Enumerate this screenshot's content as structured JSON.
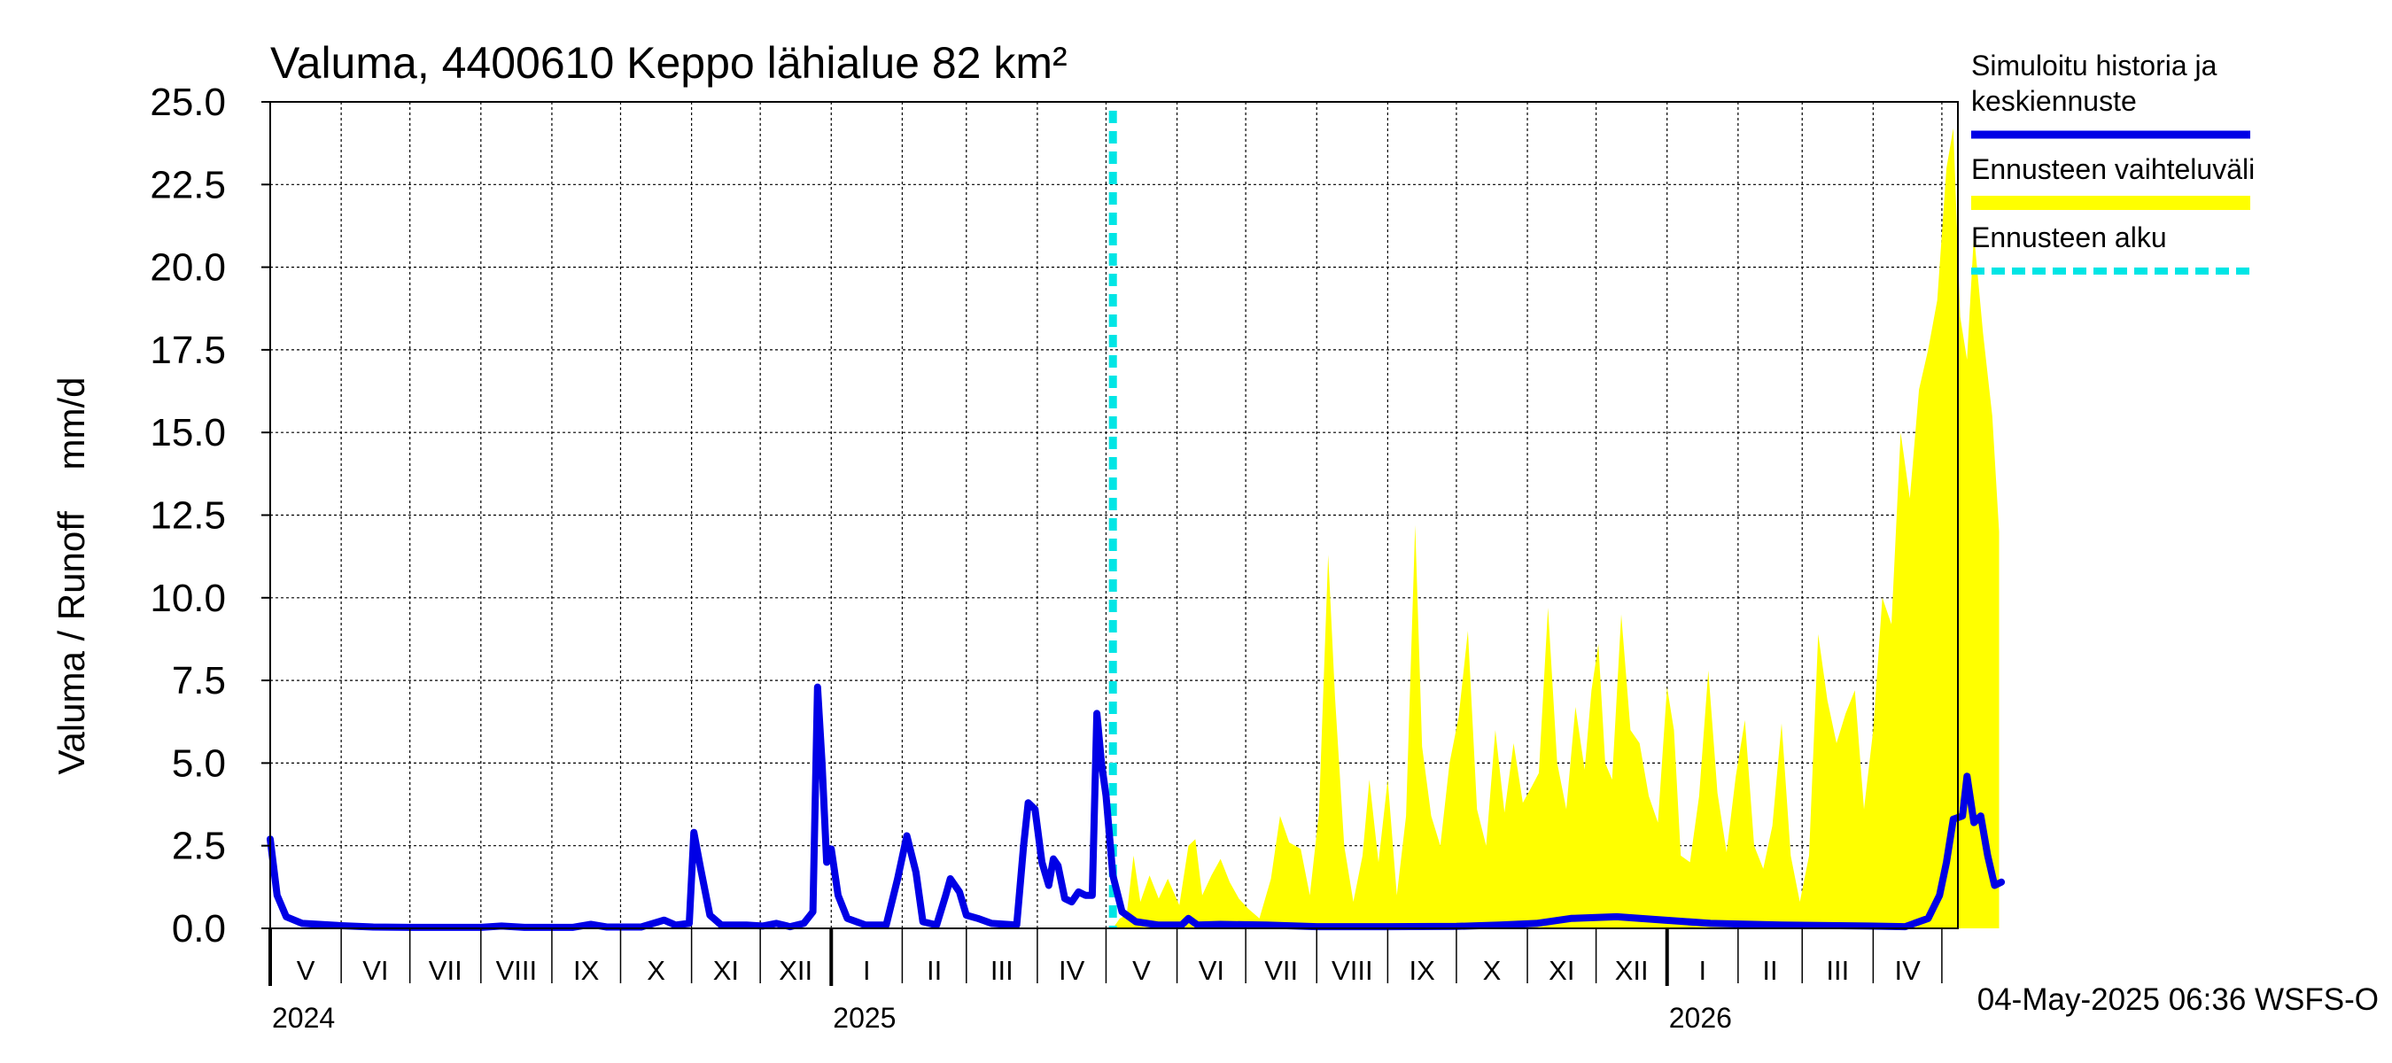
{
  "chart_data": {
    "type": "area",
    "title": "Valuma, 4400610 Keppo lähialue 82 km²",
    "ylabel": "Valuma / Runoff    mm/d",
    "ylim": [
      0,
      25
    ],
    "yticks": [
      "0.0",
      "2.5",
      "5.0",
      "7.5",
      "10.0",
      "12.5",
      "15.0",
      "17.5",
      "20.0",
      "22.5",
      "25.0"
    ],
    "x_range": [
      "2024-05-01",
      "2026-05-08"
    ],
    "month_labels": [
      "V",
      "VI",
      "VII",
      "VIII",
      "IX",
      "X",
      "XI",
      "XII",
      "I",
      "II",
      "III",
      "IV",
      "V",
      "VI",
      "VII",
      "VIII",
      "IX",
      "X",
      "XI",
      "XII",
      "I",
      "II",
      "III",
      "IV"
    ],
    "year_labels": [
      "2024",
      "2025",
      "2026"
    ],
    "grid": true,
    "legend_position": "right",
    "forecast_start": "2025-05-04",
    "footer": "04-May-2025 06:36 WSFS-O",
    "series": [
      {
        "name": "Simuloitu historia ja keskiennuste",
        "color": "#0000e6",
        "points": [
          [
            "2024-05-01",
            2.7
          ],
          [
            "2024-05-04",
            1.0
          ],
          [
            "2024-05-08",
            0.35
          ],
          [
            "2024-05-15",
            0.15
          ],
          [
            "2024-06-01",
            0.08
          ],
          [
            "2024-06-15",
            0.04
          ],
          [
            "2024-07-01",
            0.03
          ],
          [
            "2024-08-01",
            0.03
          ],
          [
            "2024-08-10",
            0.07
          ],
          [
            "2024-08-20",
            0.03
          ],
          [
            "2024-09-10",
            0.03
          ],
          [
            "2024-09-18",
            0.12
          ],
          [
            "2024-09-25",
            0.04
          ],
          [
            "2024-10-10",
            0.04
          ],
          [
            "2024-10-20",
            0.25
          ],
          [
            "2024-10-25",
            0.1
          ],
          [
            "2024-10-31",
            0.15
          ],
          [
            "2024-11-02",
            2.9
          ],
          [
            "2024-11-05",
            1.8
          ],
          [
            "2024-11-09",
            0.4
          ],
          [
            "2024-11-14",
            0.1
          ],
          [
            "2024-11-25",
            0.1
          ],
          [
            "2024-12-02",
            0.07
          ],
          [
            "2024-12-08",
            0.15
          ],
          [
            "2024-12-14",
            0.05
          ],
          [
            "2024-12-20",
            0.15
          ],
          [
            "2024-12-24",
            0.5
          ],
          [
            "2024-12-26",
            7.3
          ],
          [
            "2024-12-28",
            5.0
          ],
          [
            "2024-12-30",
            2.0
          ],
          [
            "2025-01-01",
            2.4
          ],
          [
            "2025-01-04",
            1.0
          ],
          [
            "2025-01-08",
            0.3
          ],
          [
            "2025-01-16",
            0.1
          ],
          [
            "2025-01-25",
            0.1
          ],
          [
            "2025-01-30",
            1.5
          ],
          [
            "2025-02-03",
            2.8
          ],
          [
            "2025-02-07",
            1.7
          ],
          [
            "2025-02-10",
            0.2
          ],
          [
            "2025-02-16",
            0.1
          ],
          [
            "2025-02-20",
            1.0
          ],
          [
            "2025-02-22",
            1.5
          ],
          [
            "2025-02-26",
            1.1
          ],
          [
            "2025-03-01",
            0.4
          ],
          [
            "2025-03-06",
            0.3
          ],
          [
            "2025-03-12",
            0.15
          ],
          [
            "2025-03-23",
            0.1
          ],
          [
            "2025-03-26",
            2.5
          ],
          [
            "2025-03-28",
            3.8
          ],
          [
            "2025-03-31",
            3.6
          ],
          [
            "2025-04-03",
            2.0
          ],
          [
            "2025-04-06",
            1.3
          ],
          [
            "2025-04-08",
            2.1
          ],
          [
            "2025-04-10",
            1.9
          ],
          [
            "2025-04-13",
            0.9
          ],
          [
            "2025-04-16",
            0.8
          ],
          [
            "2025-04-19",
            1.1
          ],
          [
            "2025-04-22",
            1.0
          ],
          [
            "2025-04-25",
            1.0
          ],
          [
            "2025-04-27",
            6.5
          ],
          [
            "2025-04-29",
            5.0
          ],
          [
            "2025-05-01",
            4.0
          ],
          [
            "2025-05-04",
            1.6
          ],
          [
            "2025-05-08",
            0.5
          ],
          [
            "2025-05-14",
            0.2
          ],
          [
            "2025-05-24",
            0.1
          ],
          [
            "2025-06-03",
            0.1
          ],
          [
            "2025-06-06",
            0.3
          ],
          [
            "2025-06-10",
            0.1
          ],
          [
            "2025-06-20",
            0.12
          ],
          [
            "2025-07-10",
            0.1
          ],
          [
            "2025-08-01",
            0.05
          ],
          [
            "2025-09-01",
            0.05
          ],
          [
            "2025-10-01",
            0.06
          ],
          [
            "2025-10-20",
            0.1
          ],
          [
            "2025-11-05",
            0.15
          ],
          [
            "2025-11-20",
            0.3
          ],
          [
            "2025-12-10",
            0.35
          ],
          [
            "2025-12-31",
            0.25
          ],
          [
            "2026-01-20",
            0.15
          ],
          [
            "2026-02-20",
            0.1
          ],
          [
            "2026-03-30",
            0.07
          ],
          [
            "2026-04-15",
            0.05
          ],
          [
            "2026-04-25",
            0.3
          ],
          [
            "2026-04-30",
            1.0
          ],
          [
            "2026-05-03",
            2.0
          ],
          [
            "2026-05-06",
            3.3
          ],
          [
            "2026-05-10",
            3.4
          ],
          [
            "2026-05-12",
            4.6
          ],
          [
            "2026-05-15",
            3.2
          ],
          [
            "2026-05-18",
            3.4
          ],
          [
            "2026-05-21",
            2.2
          ],
          [
            "2026-05-24",
            1.3
          ],
          [
            "2026-05-27",
            1.4
          ]
        ]
      },
      {
        "name": "Ennusteen vaihteluväli",
        "color": "#ffff00",
        "points": [
          [
            "2025-05-04",
            0.0
          ],
          [
            "2025-05-07",
            0.3
          ],
          [
            "2025-05-10",
            0.4
          ],
          [
            "2025-05-13",
            2.2
          ],
          [
            "2025-05-16",
            0.8
          ],
          [
            "2025-05-20",
            1.6
          ],
          [
            "2025-05-24",
            0.9
          ],
          [
            "2025-05-28",
            1.5
          ],
          [
            "2025-06-02",
            0.7
          ],
          [
            "2025-06-06",
            2.5
          ],
          [
            "2025-06-09",
            2.7
          ],
          [
            "2025-06-12",
            1.0
          ],
          [
            "2025-06-16",
            1.6
          ],
          [
            "2025-06-20",
            2.1
          ],
          [
            "2025-06-24",
            1.4
          ],
          [
            "2025-06-28",
            0.9
          ],
          [
            "2025-07-02",
            0.6
          ],
          [
            "2025-07-07",
            0.3
          ],
          [
            "2025-07-12",
            1.5
          ],
          [
            "2025-07-16",
            3.4
          ],
          [
            "2025-07-20",
            2.6
          ],
          [
            "2025-07-25",
            2.4
          ],
          [
            "2025-07-29",
            1.0
          ],
          [
            "2025-08-02",
            3.5
          ],
          [
            "2025-08-06",
            11.3
          ],
          [
            "2025-08-09",
            7.0
          ],
          [
            "2025-08-13",
            2.5
          ],
          [
            "2025-08-17",
            0.8
          ],
          [
            "2025-08-21",
            2.2
          ],
          [
            "2025-08-24",
            4.5
          ],
          [
            "2025-08-28",
            2.0
          ],
          [
            "2025-09-01",
            4.5
          ],
          [
            "2025-09-05",
            1.0
          ],
          [
            "2025-09-09",
            3.4
          ],
          [
            "2025-09-13",
            12.2
          ],
          [
            "2025-09-16",
            5.5
          ],
          [
            "2025-09-20",
            3.4
          ],
          [
            "2025-09-24",
            2.5
          ],
          [
            "2025-09-28",
            5.0
          ],
          [
            "2025-10-02",
            6.4
          ],
          [
            "2025-10-06",
            9.0
          ],
          [
            "2025-10-10",
            3.6
          ],
          [
            "2025-10-14",
            2.5
          ],
          [
            "2025-10-18",
            6.0
          ],
          [
            "2025-10-22",
            3.5
          ],
          [
            "2025-10-26",
            5.6
          ],
          [
            "2025-10-30",
            3.8
          ],
          [
            "2025-11-03",
            4.3
          ],
          [
            "2025-11-06",
            4.7
          ],
          [
            "2025-11-10",
            9.7
          ],
          [
            "2025-11-14",
            5.0
          ],
          [
            "2025-11-18",
            3.6
          ],
          [
            "2025-11-22",
            6.7
          ],
          [
            "2025-11-26",
            4.8
          ],
          [
            "2025-11-29",
            7.2
          ],
          [
            "2025-12-02",
            8.6
          ],
          [
            "2025-12-05",
            5.0
          ],
          [
            "2025-12-08",
            4.5
          ],
          [
            "2025-12-12",
            9.5
          ],
          [
            "2025-12-16",
            6.0
          ],
          [
            "2025-12-20",
            5.6
          ],
          [
            "2025-12-24",
            4.0
          ],
          [
            "2025-12-28",
            3.2
          ],
          [
            "2026-01-01",
            7.3
          ],
          [
            "2026-01-04",
            6.0
          ],
          [
            "2026-01-07",
            2.2
          ],
          [
            "2026-01-11",
            2.0
          ],
          [
            "2026-01-15",
            4.0
          ],
          [
            "2026-01-19",
            7.8
          ],
          [
            "2026-01-23",
            4.1
          ],
          [
            "2026-01-27",
            2.3
          ],
          [
            "2026-01-31",
            4.6
          ],
          [
            "2026-02-04",
            6.3
          ],
          [
            "2026-02-08",
            2.5
          ],
          [
            "2026-02-12",
            1.8
          ],
          [
            "2026-02-16",
            3.1
          ],
          [
            "2026-02-20",
            6.2
          ],
          [
            "2026-02-24",
            2.2
          ],
          [
            "2026-02-28",
            0.8
          ],
          [
            "2026-03-04",
            2.2
          ],
          [
            "2026-03-08",
            8.9
          ],
          [
            "2026-03-12",
            6.9
          ],
          [
            "2026-03-16",
            5.6
          ],
          [
            "2026-03-20",
            6.5
          ],
          [
            "2026-03-24",
            7.2
          ],
          [
            "2026-03-28",
            3.6
          ],
          [
            "2026-04-01",
            6.0
          ],
          [
            "2026-04-05",
            10.0
          ],
          [
            "2026-04-09",
            9.2
          ],
          [
            "2026-04-13",
            15.0
          ],
          [
            "2026-04-17",
            13.0
          ],
          [
            "2026-04-21",
            16.3
          ],
          [
            "2026-04-25",
            17.5
          ],
          [
            "2026-04-29",
            19.0
          ],
          [
            "2026-05-03",
            23.0
          ],
          [
            "2026-05-06",
            24.2
          ],
          [
            "2026-05-09",
            18.5
          ],
          [
            "2026-05-12",
            17.2
          ],
          [
            "2026-05-15",
            21.0
          ],
          [
            "2026-05-19",
            18.0
          ],
          [
            "2026-05-23",
            15.5
          ],
          [
            "2026-05-26",
            12.0
          ]
        ]
      }
    ],
    "legend": [
      {
        "label": "Simuloitu historia ja\nkeskiennuste",
        "style": "solid-blue"
      },
      {
        "label": "Ennusteen vaihteluväli",
        "style": "yellow-band"
      },
      {
        "label": "Ennusteen alku",
        "style": "cyan-dashed"
      }
    ]
  }
}
